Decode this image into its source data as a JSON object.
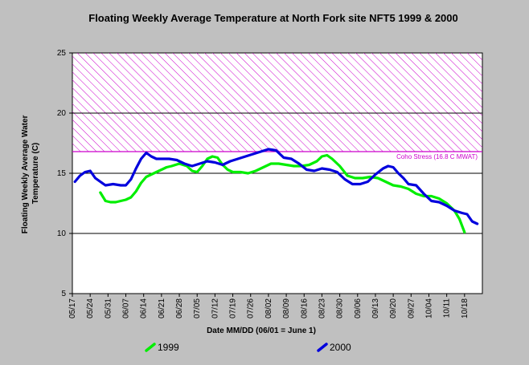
{
  "chart_data": {
    "type": "line",
    "title": "Floating Weekly Average Temperature at North Fork site NFT5 1999 & 2000",
    "xlabel": "Date MM/DD (06/01 = June 1)",
    "ylabel": "Floating Weekly Average Water Temperature (C)",
    "ylim": [
      5,
      25
    ],
    "yticks": [
      5,
      10,
      15,
      20,
      25
    ],
    "x_tick_labels": [
      "05/17",
      "05/24",
      "05/31",
      "06/07",
      "06/14",
      "06/21",
      "06/28",
      "07/05",
      "07/12",
      "07/19",
      "07/26",
      "08/02",
      "08/09",
      "08/16",
      "08/23",
      "08/30",
      "09/06",
      "09/13",
      "09/20",
      "09/27",
      "10/04",
      "10/11",
      "10/18"
    ],
    "grid": "horizontal",
    "threshold": {
      "label": "Coho Stress (16.8 C MWAT)",
      "value": 16.8,
      "band_top": 25,
      "color": "#cc00cc"
    },
    "series": [
      {
        "name": "1999",
        "color": "#00ee00",
        "x": [
          "05/28",
          "05/30",
          "06/01",
          "06/03",
          "06/05",
          "06/07",
          "06/09",
          "06/11",
          "06/13",
          "06/15",
          "06/17",
          "06/19",
          "06/21",
          "06/23",
          "06/25",
          "06/28",
          "07/01",
          "07/03",
          "07/05",
          "07/07",
          "07/09",
          "07/11",
          "07/13",
          "07/15",
          "07/17",
          "07/19",
          "07/22",
          "07/25",
          "07/28",
          "07/31",
          "08/03",
          "08/06",
          "08/09",
          "08/12",
          "08/15",
          "08/18",
          "08/21",
          "08/23",
          "08/25",
          "08/27",
          "08/30",
          "09/02",
          "09/05",
          "09/08",
          "09/11",
          "09/14",
          "09/17",
          "09/20",
          "09/23",
          "09/26",
          "09/29",
          "10/02",
          "10/05",
          "10/08",
          "10/11",
          "10/14",
          "10/16",
          "10/18"
        ],
        "y": [
          13.4,
          12.7,
          12.6,
          12.6,
          12.7,
          12.8,
          13.0,
          13.5,
          14.2,
          14.7,
          14.9,
          15.1,
          15.3,
          15.5,
          15.6,
          15.8,
          15.6,
          15.2,
          15.1,
          15.6,
          16.2,
          16.4,
          16.3,
          15.7,
          15.3,
          15.1,
          15.1,
          15.0,
          15.2,
          15.5,
          15.8,
          15.8,
          15.7,
          15.6,
          15.6,
          15.7,
          16.0,
          16.4,
          16.5,
          16.2,
          15.6,
          14.8,
          14.6,
          14.6,
          14.7,
          14.6,
          14.3,
          14.0,
          13.9,
          13.7,
          13.3,
          13.1,
          13.1,
          12.9,
          12.5,
          11.9,
          11.2,
          10.1
        ]
      },
      {
        "name": "2000",
        "color": "#0000dd",
        "x": [
          "05/18",
          "05/20",
          "05/22",
          "05/24",
          "05/26",
          "05/28",
          "05/30",
          "06/02",
          "06/05",
          "06/07",
          "06/09",
          "06/11",
          "06/13",
          "06/15",
          "06/17",
          "06/19",
          "06/21",
          "06/24",
          "06/27",
          "06/30",
          "07/03",
          "07/06",
          "07/09",
          "07/12",
          "07/15",
          "07/18",
          "07/21",
          "07/24",
          "07/27",
          "07/30",
          "08/02",
          "08/05",
          "08/08",
          "08/11",
          "08/14",
          "08/17",
          "08/20",
          "08/23",
          "08/26",
          "08/29",
          "09/01",
          "09/04",
          "09/07",
          "09/10",
          "09/13",
          "09/16",
          "09/18",
          "09/20",
          "09/22",
          "09/24",
          "09/26",
          "09/29",
          "10/02",
          "10/05",
          "10/08",
          "10/11",
          "10/14",
          "10/17",
          "10/19",
          "10/21",
          "10/23"
        ],
        "y": [
          14.3,
          14.8,
          15.1,
          15.2,
          14.6,
          14.3,
          14.0,
          14.1,
          14.0,
          14.0,
          14.5,
          15.4,
          16.2,
          16.7,
          16.4,
          16.2,
          16.2,
          16.2,
          16.1,
          15.8,
          15.6,
          15.8,
          16.0,
          15.9,
          15.7,
          16.0,
          16.2,
          16.4,
          16.6,
          16.8,
          17.0,
          16.9,
          16.3,
          16.2,
          15.8,
          15.3,
          15.2,
          15.4,
          15.3,
          15.1,
          14.5,
          14.1,
          14.1,
          14.3,
          14.9,
          15.4,
          15.6,
          15.5,
          15.0,
          14.6,
          14.1,
          14.0,
          13.3,
          12.7,
          12.6,
          12.3,
          11.9,
          11.7,
          11.6,
          11.0,
          10.8
        ]
      }
    ]
  }
}
